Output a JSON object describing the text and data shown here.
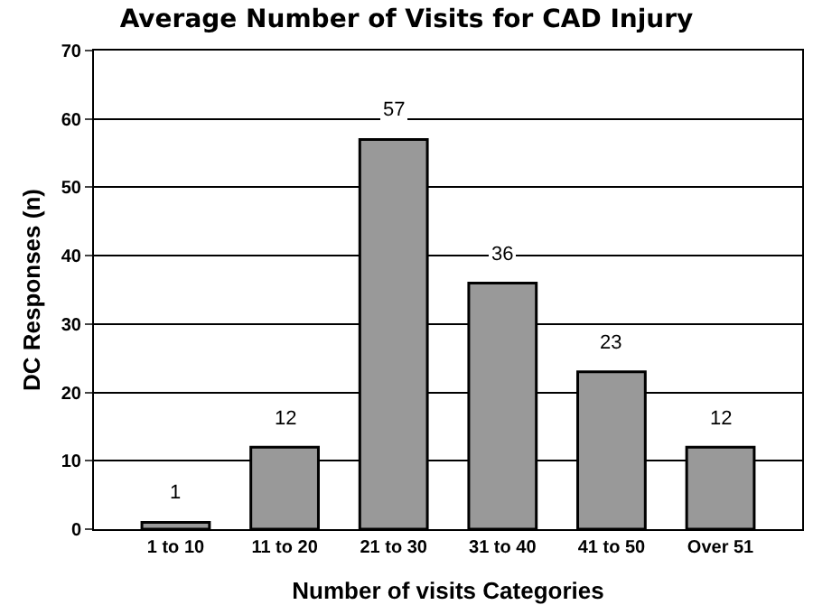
{
  "chart_data": {
    "type": "bar",
    "title": "Average Number of Visits for CAD Injury",
    "xlabel": "Number of visits Categories",
    "ylabel": "DC Responses (n)",
    "categories": [
      "1 to 10",
      "11 to 20",
      "21 to 30",
      "31 to 40",
      "41 to 50",
      "Over 51"
    ],
    "values": [
      1,
      12,
      57,
      36,
      23,
      12
    ],
    "color": "#999999",
    "ylim": [
      0,
      70
    ],
    "yticks": [
      0,
      10,
      20,
      30,
      40,
      50,
      60,
      70
    ],
    "grid": "y",
    "data_labels": true
  }
}
